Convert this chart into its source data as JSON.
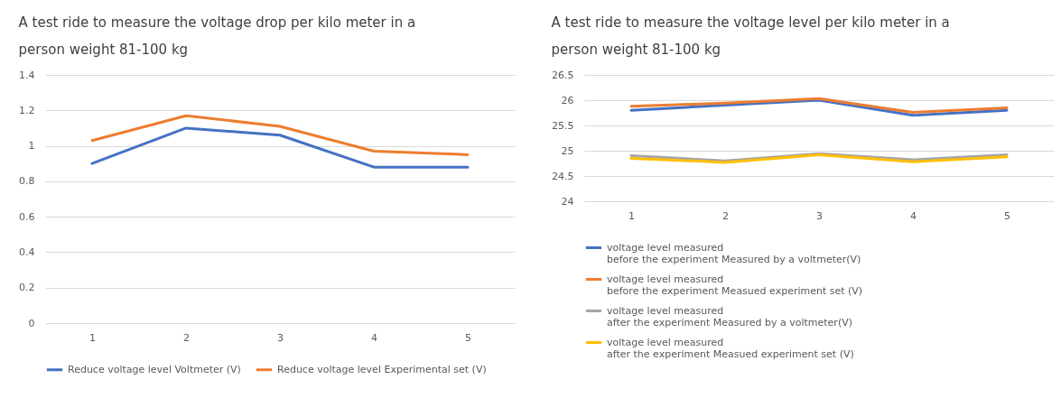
{
  "chart_data": [
    {
      "type": "line",
      "title": "A test ride to measure the voltage drop per kilo meter in a person weight 81-100 kg",
      "categories": [
        "1",
        "2",
        "3",
        "4",
        "5"
      ],
      "ylim": [
        0,
        1.4
      ],
      "yticks": [
        0,
        0.2,
        0.4,
        0.6,
        0.8,
        1,
        1.2,
        1.4
      ],
      "grid": "y",
      "legend": "bottom",
      "series": [
        {
          "name": "Reduce voltage level Voltmeter (V)",
          "color": "#4472c4",
          "values": [
            0.9,
            1.1,
            1.06,
            0.88,
            0.88
          ]
        },
        {
          "name": "Reduce voltage level Experimental set (V)",
          "color": "#ed7d31",
          "values": [
            1.03,
            1.17,
            1.11,
            0.97,
            0.95
          ]
        }
      ]
    },
    {
      "type": "line",
      "title": "A test ride to measure the voltage level per kilo meter in a person weight 81-100 kg",
      "categories": [
        "1",
        "2",
        "3",
        "4",
        "5"
      ],
      "ylim": [
        24,
        26.5
      ],
      "yticks": [
        24,
        24.5,
        25,
        25.5,
        26,
        26.5
      ],
      "grid": "y",
      "legend": "bottom",
      "series": [
        {
          "name": "voltage level measured\nbefore the experiment Measured by a voltmeter(V)",
          "color": "#4472c4",
          "values": [
            25.8,
            25.9,
            26.0,
            25.7,
            25.8
          ]
        },
        {
          "name": "voltage level measured\nbefore the experiment Measued experiment set (V)",
          "color": "#ed7d31",
          "values": [
            25.88,
            25.94,
            26.03,
            25.76,
            25.85
          ]
        },
        {
          "name": "voltage level measured\nafter the experiment Measured by a voltmeter(V)",
          "color": "#a5a5a5",
          "values": [
            24.9,
            24.8,
            24.94,
            24.82,
            24.92
          ]
        },
        {
          "name": "voltage level measured\nafter the experiment Measued experiment set (V)",
          "color": "#ffc000",
          "values": [
            24.85,
            24.77,
            24.92,
            24.78,
            24.88
          ]
        }
      ]
    }
  ]
}
